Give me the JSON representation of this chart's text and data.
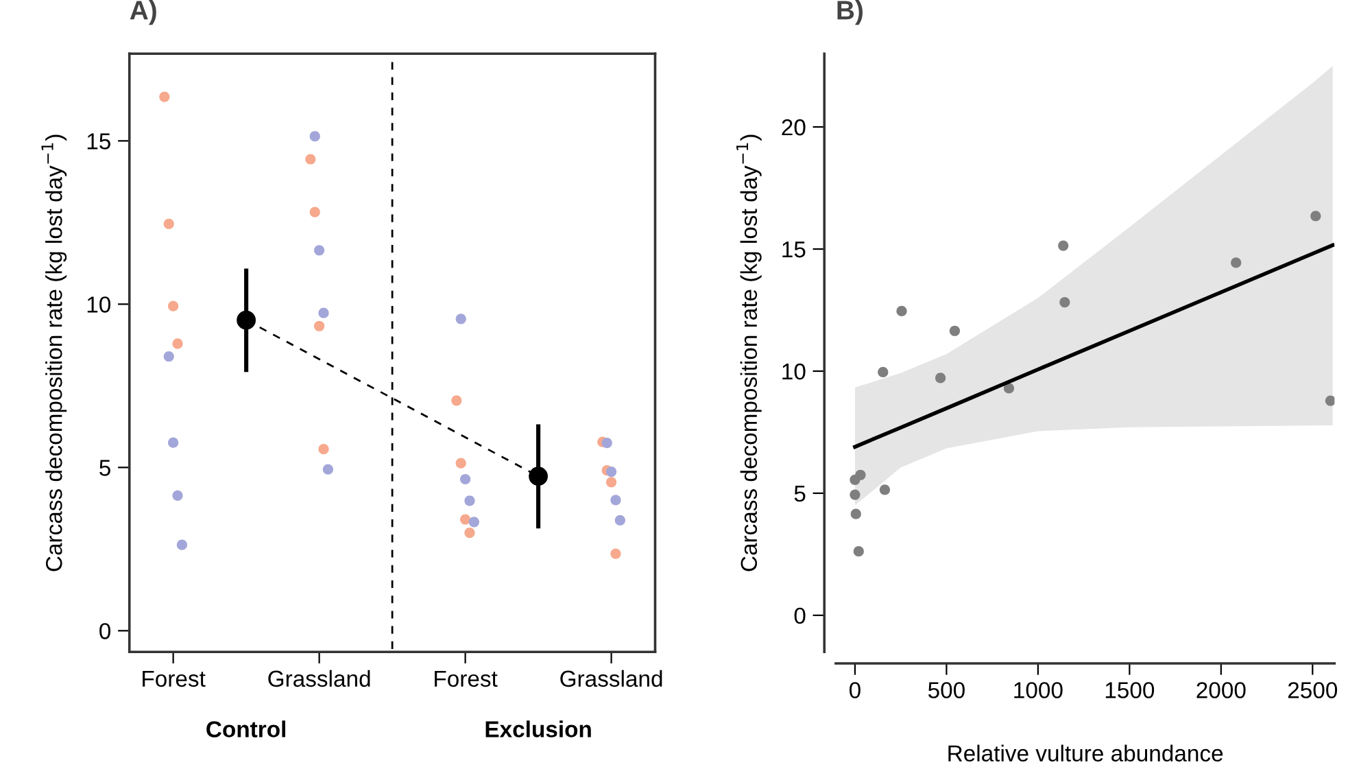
{
  "chart_data": [
    {
      "type": "scatter",
      "title": "A)",
      "ylabel": "Carcass decomposition rate (kg lost day$^{−1}$)",
      "categories": [
        "Forest",
        null,
        "Grassland",
        null,
        "Forest",
        null,
        "Grassland"
      ],
      "ylim": [
        -0.65,
        17.67
      ],
      "yticks": [
        0,
        5,
        10,
        15
      ],
      "legend": false,
      "marker": "circle",
      "annotations": [
        "Control",
        "Exclusion"
      ],
      "series": [
        {
          "color": "#f6a98d",
          "values": [
            16.35,
            null,
            14.44,
            null,
            7.05,
            null,
            5.78
          ]
        },
        {
          "color": "#f6a98d",
          "values": [
            12.46,
            null,
            12.82,
            null,
            5.13,
            null,
            4.91
          ]
        },
        {
          "color": "#f6a98d",
          "values": [
            9.94,
            null,
            9.33,
            null,
            3.41,
            null,
            4.55
          ]
        },
        {
          "color": "#f6a98d",
          "values": [
            8.79,
            null,
            5.56,
            null,
            3.0,
            null,
            2.36
          ]
        },
        {
          "color": "#a3a6d9",
          "values": [
            8.4,
            null,
            15.14,
            null,
            9.55,
            null,
            5.75
          ]
        },
        {
          "color": "#a3a6d9",
          "values": [
            5.76,
            null,
            11.65,
            null,
            4.64,
            null,
            4.87
          ]
        },
        {
          "color": "#a3a6d9",
          "values": [
            4.14,
            null,
            9.73,
            null,
            3.98,
            null,
            4.0
          ]
        },
        {
          "color": "#a3a6d9",
          "values": [
            2.63,
            null,
            4.94,
            null,
            3.33,
            null,
            3.38
          ]
        },
        {
          "type": "line",
          "color": "#000000",
          "line_style": "dashed",
          "marker": "circle",
          "values": [
            null,
            9.51,
            null,
            null,
            null,
            4.73,
            null
          ],
          "errors": [
            null,
            [
              7.92,
              11.09
            ],
            null,
            null,
            null,
            [
              3.13,
              6.32
            ],
            null
          ]
        }
      ]
    },
    {
      "type": "scatter",
      "title": "B)",
      "ylabel": "Carcass decomposition rate (kg lost day$^{−1}$)",
      "xlabel": "Relative vulture abundance",
      "xlim": [
        -105,
        2620
      ],
      "ylim": [
        -1.5,
        23
      ],
      "xticks": [
        0,
        500,
        1000,
        1500,
        2000,
        2500
      ],
      "yticks": [
        0,
        5,
        10,
        15,
        20
      ],
      "grid": false,
      "legend": false,
      "marker": "circle",
      "series": [
        {
          "color": "#7f7f7f",
          "x": [
            0,
            30,
            0,
            5,
            20,
            153,
            163,
            255,
            467,
            545,
            841,
            1138,
            1146,
            2082,
            2517,
            2598
          ],
          "values": [
            5.55,
            5.75,
            4.94,
            4.15,
            2.62,
            9.96,
            5.14,
            12.46,
            9.72,
            11.65,
            9.3,
            15.14,
            12.82,
            14.44,
            16.35,
            8.79
          ]
        },
        {
          "type": "line",
          "color": "#000000",
          "marker": "none",
          "line_style": "solid",
          "x": [
            0,
            250,
            500,
            1000,
            1500,
            2000,
            2500,
            2610
          ],
          "values": [
            6.9,
            7.69,
            8.48,
            10.07,
            11.65,
            13.23,
            14.81,
            15.16
          ],
          "lower": [
            4.5,
            6.05,
            6.84,
            7.54,
            7.7,
            7.74,
            7.77,
            7.78
          ],
          "upper": [
            9.33,
            9.92,
            10.7,
            13.0,
            15.9,
            18.85,
            21.8,
            22.5
          ]
        }
      ]
    }
  ]
}
